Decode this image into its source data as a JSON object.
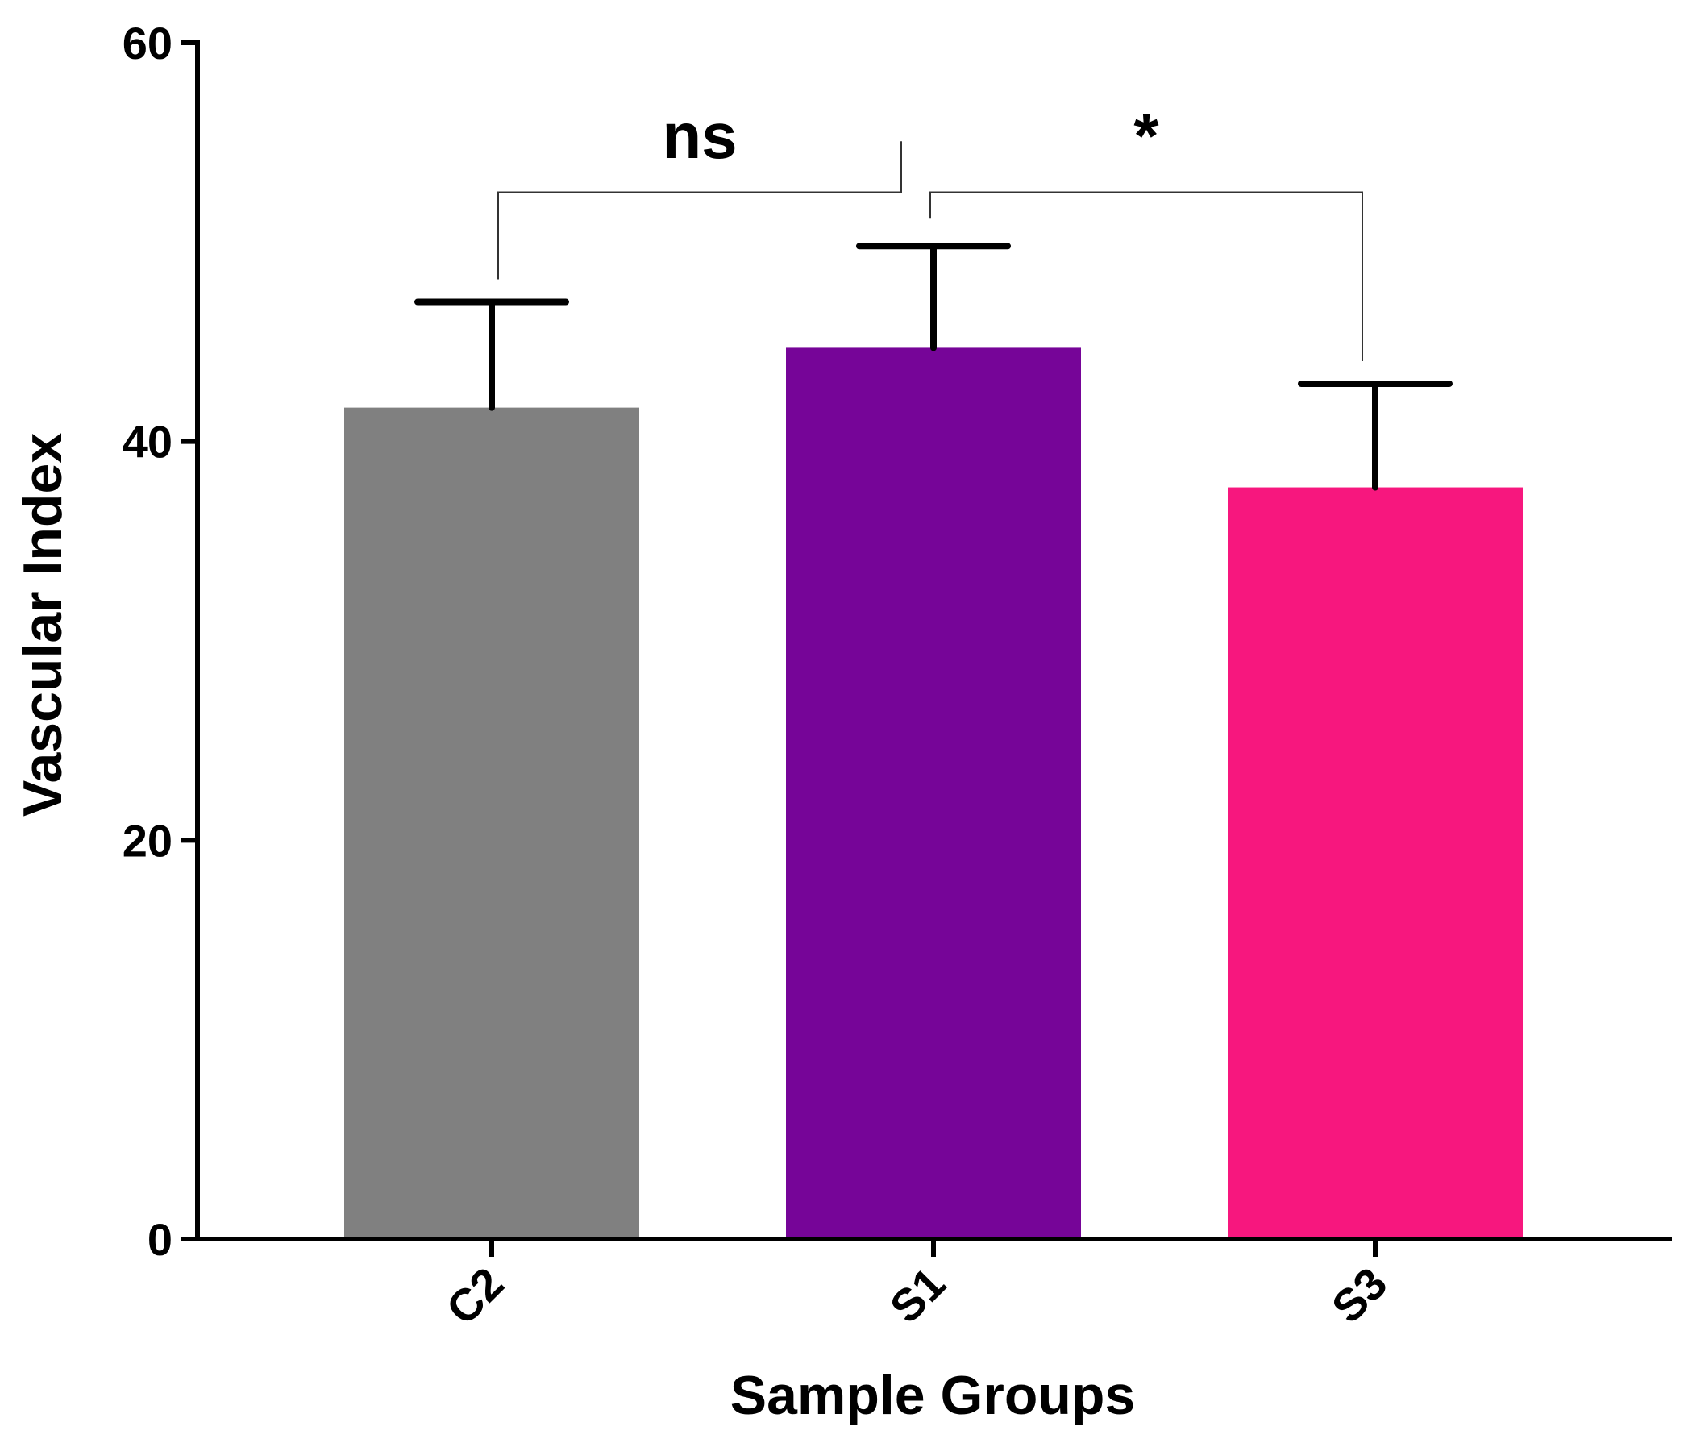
{
  "chart_data": {
    "type": "bar",
    "title": "",
    "xlabel": "Sample Groups",
    "ylabel": "Vascular Index",
    "ylim": [
      0,
      60
    ],
    "yticks": [
      0,
      20,
      40,
      60
    ],
    "categories": [
      "C2",
      "S1",
      "S3"
    ],
    "values": [
      41.7,
      44.7,
      37.7
    ],
    "error_upper": [
      47.0,
      49.8,
      42.9
    ],
    "colors": [
      "#808080",
      "#760598",
      "#F7177E"
    ],
    "significance": [
      {
        "from": "C2",
        "to": "S1",
        "label": "ns"
      },
      {
        "from": "S1",
        "to": "S3",
        "label": "*"
      }
    ]
  }
}
